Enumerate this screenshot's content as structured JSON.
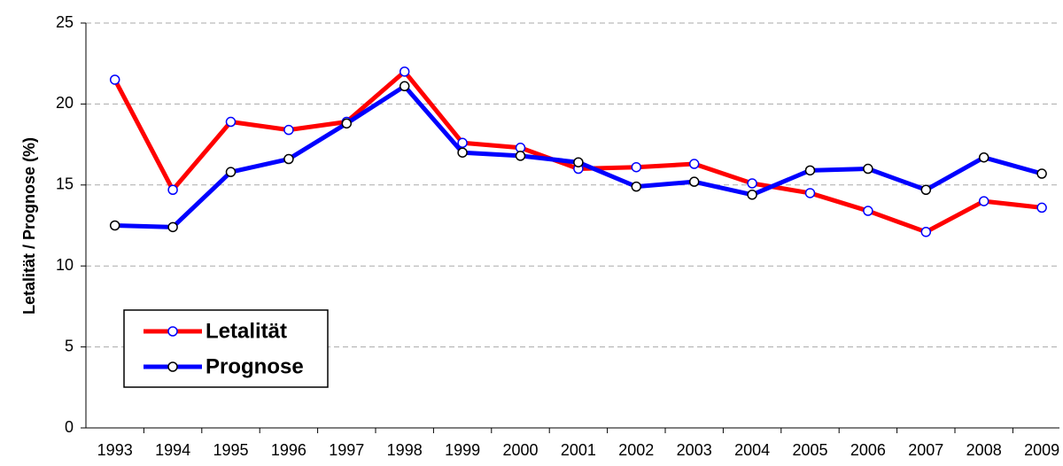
{
  "chart_data": {
    "type": "line",
    "y_label": "Letalität / Prognose (%)",
    "categories": [
      "1993",
      "1994",
      "1995",
      "1996",
      "1997",
      "1998",
      "1999",
      "2000",
      "2001",
      "2002",
      "2003",
      "2004",
      "2005",
      "2006",
      "2007",
      "2008",
      "2009"
    ],
    "series": [
      {
        "name": "Letalität",
        "color": "#ff0000",
        "values": [
          21.5,
          14.7,
          18.9,
          18.4,
          18.9,
          22.0,
          17.6,
          17.3,
          16.0,
          16.1,
          16.3,
          15.1,
          14.5,
          13.4,
          12.1,
          14.0,
          13.6
        ]
      },
      {
        "name": "Prognose",
        "color": "#0000ff",
        "values": [
          12.5,
          12.4,
          15.8,
          16.6,
          18.8,
          21.1,
          17.0,
          16.8,
          16.4,
          14.9,
          15.2,
          14.4,
          15.9,
          16.0,
          14.7,
          16.7,
          15.7
        ]
      }
    ],
    "ylim": [
      0,
      25
    ],
    "yticks": [
      0,
      5,
      10,
      15,
      20,
      25
    ],
    "grid": true,
    "legend": "lower-left"
  }
}
